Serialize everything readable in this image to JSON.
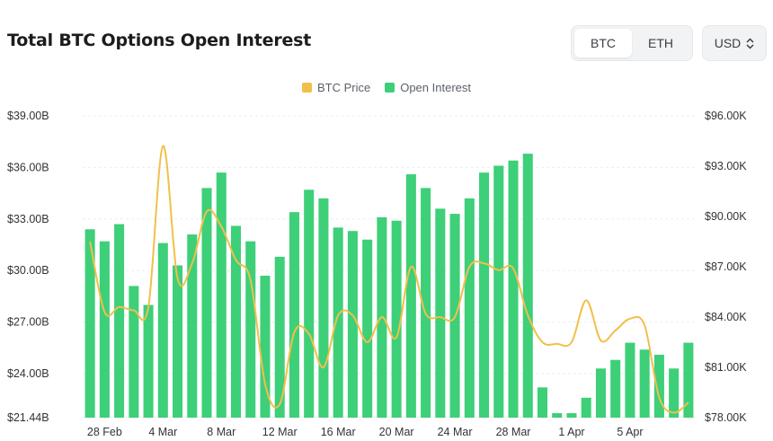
{
  "header": {
    "title": "Total BTC Options Open Interest",
    "asset_tabs": [
      {
        "label": "BTC",
        "active": true
      },
      {
        "label": "ETH",
        "active": false
      }
    ],
    "currency": {
      "label": "USD",
      "icon": "chevron-updown-icon"
    }
  },
  "colors": {
    "price": "#f0c04a",
    "oi": "#3ecf79",
    "grid": "#eceef1"
  },
  "chart_data": {
    "type": "bar",
    "title": "Total BTC Options Open Interest",
    "series": [
      {
        "name": "Open Interest",
        "type": "bar",
        "axis": "left",
        "values": [
          32.4,
          31.7,
          32.7,
          29.1,
          28.0,
          31.6,
          30.3,
          32.1,
          34.8,
          35.7,
          32.6,
          31.7,
          29.7,
          30.8,
          33.4,
          34.7,
          34.2,
          32.5,
          32.3,
          31.8,
          33.1,
          32.9,
          35.6,
          34.8,
          33.6,
          33.3,
          34.2,
          35.7,
          36.1,
          36.4,
          36.8,
          23.2,
          21.7,
          21.7,
          22.6,
          24.3,
          24.8,
          25.8,
          25.4,
          25.1,
          24.3,
          25.8
        ]
      },
      {
        "name": "BTC Price",
        "type": "line",
        "axis": "right",
        "values": [
          88.5,
          84.3,
          84.6,
          84.4,
          84.6,
          94.2,
          86.3,
          87.2,
          90.3,
          89.4,
          87.4,
          86.2,
          80.0,
          78.8,
          83.1,
          83.0,
          81.0,
          84.1,
          84.1,
          82.5,
          84.0,
          82.8,
          87.0,
          84.2,
          84.0,
          84.0,
          87.0,
          87.2,
          86.8,
          86.9,
          84.1,
          82.5,
          82.4,
          82.5,
          85.0,
          82.6,
          83.2,
          83.9,
          83.5,
          79.2,
          78.3,
          78.9
        ]
      }
    ],
    "x_labels": [
      "28 Feb",
      "4 Mar",
      "8 Mar",
      "12 Mar",
      "16 Mar",
      "20 Mar",
      "24 Mar",
      "28 Mar",
      "1 Apr",
      "5 Apr"
    ],
    "y_left": {
      "ticks": [
        "$39.00B",
        "$36.00B",
        "$33.00B",
        "$30.00B",
        "$27.00B",
        "$24.00B",
        "$21.44B"
      ],
      "values": [
        39.0,
        36.0,
        33.0,
        30.0,
        27.0,
        24.0,
        21.44
      ],
      "range": [
        21.44,
        39.0
      ]
    },
    "y_right": {
      "ticks": [
        "$96.00K",
        "$93.00K",
        "$90.00K",
        "$87.00K",
        "$84.00K",
        "$81.00K",
        "$78.00K"
      ],
      "values": [
        96,
        93,
        90,
        87,
        84,
        81,
        78
      ],
      "range": [
        78.0,
        96.0
      ]
    },
    "grid": true,
    "legend_position": "top-center"
  }
}
